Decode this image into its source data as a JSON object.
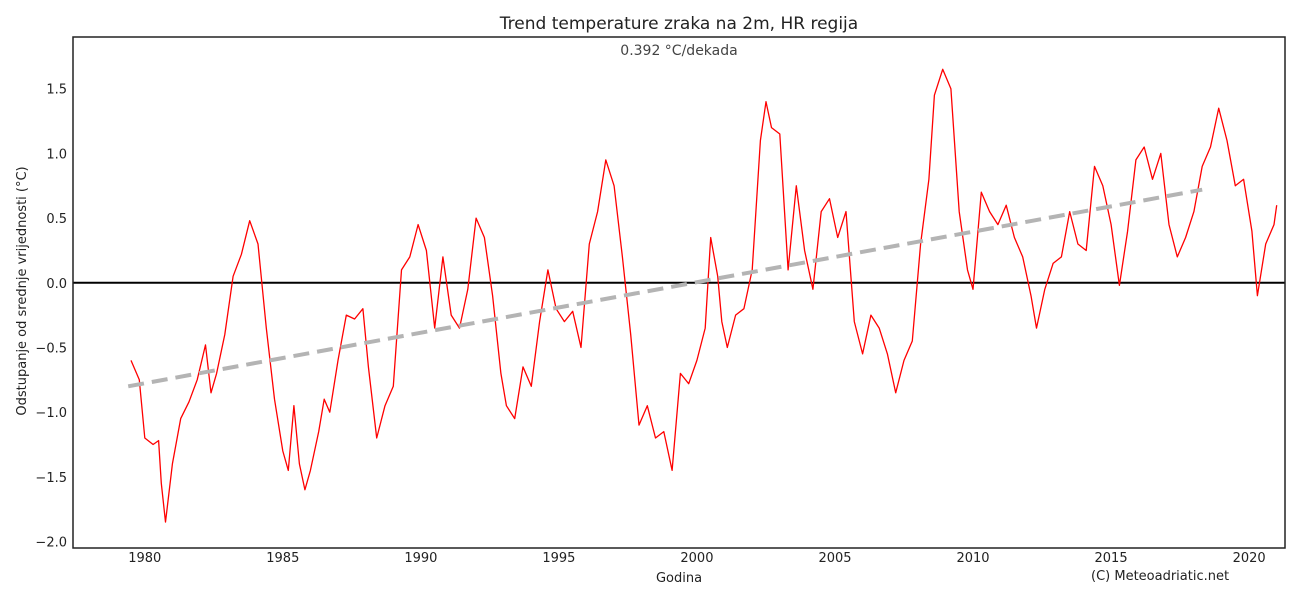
{
  "chart_data": {
    "type": "line",
    "title": "Trend temperature zraka na 2m, HR regija",
    "subtitle": "0.392 °C/dekada",
    "xlabel": "Godina",
    "ylabel": "Odstupanje od srednje vrijednosti (°C)",
    "xlim": [
      1977.4,
      2021.3
    ],
    "ylim": [
      -2.05,
      1.9
    ],
    "x_ticks": [
      1980,
      1985,
      1990,
      1995,
      2000,
      2005,
      2010,
      2015,
      2020
    ],
    "y_ticks": [
      -2.0,
      -1.5,
      -1.0,
      -0.5,
      0.0,
      0.5,
      1.0,
      1.5
    ],
    "y_tick_labels": [
      "−2.0",
      "−1.5",
      "−1.0",
      "−0.5",
      "0.0",
      "0.5",
      "1.0",
      "1.5"
    ],
    "grid": false,
    "reference_line": {
      "y": 0.0,
      "color": "#000000"
    },
    "series": [
      {
        "color": "#ff0000",
        "style": "solid",
        "points": [
          [
            1979.5,
            -0.6
          ],
          [
            1979.8,
            -0.75
          ],
          [
            1980.0,
            -1.2
          ],
          [
            1980.3,
            -1.25
          ],
          [
            1980.5,
            -1.22
          ],
          [
            1980.6,
            -1.55
          ],
          [
            1980.75,
            -1.85
          ],
          [
            1981.0,
            -1.4
          ],
          [
            1981.3,
            -1.05
          ],
          [
            1981.6,
            -0.92
          ],
          [
            1981.9,
            -0.75
          ],
          [
            1982.2,
            -0.48
          ],
          [
            1982.4,
            -0.85
          ],
          [
            1982.6,
            -0.7
          ],
          [
            1982.9,
            -0.4
          ],
          [
            1983.2,
            0.05
          ],
          [
            1983.5,
            0.22
          ],
          [
            1983.8,
            0.48
          ],
          [
            1984.1,
            0.3
          ],
          [
            1984.4,
            -0.35
          ],
          [
            1984.7,
            -0.9
          ],
          [
            1985.0,
            -1.3
          ],
          [
            1985.2,
            -1.45
          ],
          [
            1985.4,
            -0.95
          ],
          [
            1985.6,
            -1.4
          ],
          [
            1985.8,
            -1.6
          ],
          [
            1986.0,
            -1.45
          ],
          [
            1986.3,
            -1.15
          ],
          [
            1986.5,
            -0.9
          ],
          [
            1986.7,
            -1.0
          ],
          [
            1987.0,
            -0.6
          ],
          [
            1987.3,
            -0.25
          ],
          [
            1987.6,
            -0.28
          ],
          [
            1987.9,
            -0.2
          ],
          [
            1988.1,
            -0.65
          ],
          [
            1988.4,
            -1.2
          ],
          [
            1988.7,
            -0.95
          ],
          [
            1989.0,
            -0.8
          ],
          [
            1989.3,
            0.1
          ],
          [
            1989.6,
            0.2
          ],
          [
            1989.9,
            0.45
          ],
          [
            1990.2,
            0.25
          ],
          [
            1990.5,
            -0.35
          ],
          [
            1990.8,
            0.2
          ],
          [
            1991.1,
            -0.25
          ],
          [
            1991.4,
            -0.35
          ],
          [
            1991.7,
            -0.05
          ],
          [
            1992.0,
            0.5
          ],
          [
            1992.3,
            0.35
          ],
          [
            1992.6,
            -0.1
          ],
          [
            1992.9,
            -0.7
          ],
          [
            1993.1,
            -0.95
          ],
          [
            1993.4,
            -1.05
          ],
          [
            1993.7,
            -0.65
          ],
          [
            1994.0,
            -0.8
          ],
          [
            1994.3,
            -0.3
          ],
          [
            1994.6,
            0.1
          ],
          [
            1994.9,
            -0.2
          ],
          [
            1995.2,
            -0.3
          ],
          [
            1995.5,
            -0.22
          ],
          [
            1995.8,
            -0.5
          ],
          [
            1996.1,
            0.3
          ],
          [
            1996.4,
            0.55
          ],
          [
            1996.7,
            0.95
          ],
          [
            1997.0,
            0.75
          ],
          [
            1997.3,
            0.2
          ],
          [
            1997.6,
            -0.4
          ],
          [
            1997.9,
            -1.1
          ],
          [
            1998.2,
            -0.95
          ],
          [
            1998.5,
            -1.2
          ],
          [
            1998.8,
            -1.15
          ],
          [
            1999.1,
            -1.45
          ],
          [
            1999.4,
            -0.7
          ],
          [
            1999.7,
            -0.78
          ],
          [
            2000.0,
            -0.6
          ],
          [
            2000.3,
            -0.35
          ],
          [
            2000.5,
            0.35
          ],
          [
            2000.75,
            0.05
          ],
          [
            2000.9,
            -0.3
          ],
          [
            2001.1,
            -0.5
          ],
          [
            2001.4,
            -0.25
          ],
          [
            2001.7,
            -0.2
          ],
          [
            2002.0,
            0.1
          ],
          [
            2002.3,
            1.1
          ],
          [
            2002.5,
            1.4
          ],
          [
            2002.7,
            1.2
          ],
          [
            2003.0,
            1.15
          ],
          [
            2003.3,
            0.1
          ],
          [
            2003.6,
            0.75
          ],
          [
            2003.9,
            0.25
          ],
          [
            2004.2,
            -0.05
          ],
          [
            2004.5,
            0.55
          ],
          [
            2004.8,
            0.65
          ],
          [
            2005.1,
            0.35
          ],
          [
            2005.4,
            0.55
          ],
          [
            2005.7,
            -0.3
          ],
          [
            2006.0,
            -0.55
          ],
          [
            2006.3,
            -0.25
          ],
          [
            2006.6,
            -0.35
          ],
          [
            2006.9,
            -0.55
          ],
          [
            2007.2,
            -0.85
          ],
          [
            2007.5,
            -0.6
          ],
          [
            2007.8,
            -0.45
          ],
          [
            2008.1,
            0.3
          ],
          [
            2008.4,
            0.8
          ],
          [
            2008.6,
            1.45
          ],
          [
            2008.9,
            1.65
          ],
          [
            2009.2,
            1.5
          ],
          [
            2009.5,
            0.55
          ],
          [
            2009.8,
            0.1
          ],
          [
            2010.0,
            -0.05
          ],
          [
            2010.3,
            0.7
          ],
          [
            2010.6,
            0.55
          ],
          [
            2010.9,
            0.45
          ],
          [
            2011.2,
            0.6
          ],
          [
            2011.5,
            0.35
          ],
          [
            2011.8,
            0.2
          ],
          [
            2012.1,
            -0.1
          ],
          [
            2012.3,
            -0.35
          ],
          [
            2012.6,
            -0.05
          ],
          [
            2012.9,
            0.15
          ],
          [
            2013.2,
            0.2
          ],
          [
            2013.5,
            0.55
          ],
          [
            2013.8,
            0.3
          ],
          [
            2014.1,
            0.25
          ],
          [
            2014.4,
            0.9
          ],
          [
            2014.7,
            0.75
          ],
          [
            2015.0,
            0.45
          ],
          [
            2015.3,
            -0.02
          ],
          [
            2015.6,
            0.4
          ],
          [
            2015.9,
            0.95
          ],
          [
            2016.2,
            1.05
          ],
          [
            2016.5,
            0.8
          ],
          [
            2016.8,
            1.0
          ],
          [
            2017.1,
            0.45
          ],
          [
            2017.4,
            0.2
          ],
          [
            2017.7,
            0.35
          ],
          [
            2018.0,
            0.55
          ],
          [
            2018.3,
            0.9
          ],
          [
            2018.6,
            1.05
          ],
          [
            2018.9,
            1.35
          ],
          [
            2019.2,
            1.1
          ],
          [
            2019.5,
            0.75
          ],
          [
            2019.8,
            0.8
          ],
          [
            2020.1,
            0.4
          ],
          [
            2020.3,
            -0.1
          ],
          [
            2020.6,
            0.3
          ],
          [
            2020.9,
            0.45
          ],
          [
            2021.0,
            0.6
          ]
        ]
      },
      {
        "color": "#b4b4b4",
        "style": "dashed",
        "points": [
          [
            1979.4,
            -0.8
          ],
          [
            2018.3,
            0.72
          ]
        ]
      }
    ]
  },
  "credit": "(C) Meteoadriatic.net"
}
